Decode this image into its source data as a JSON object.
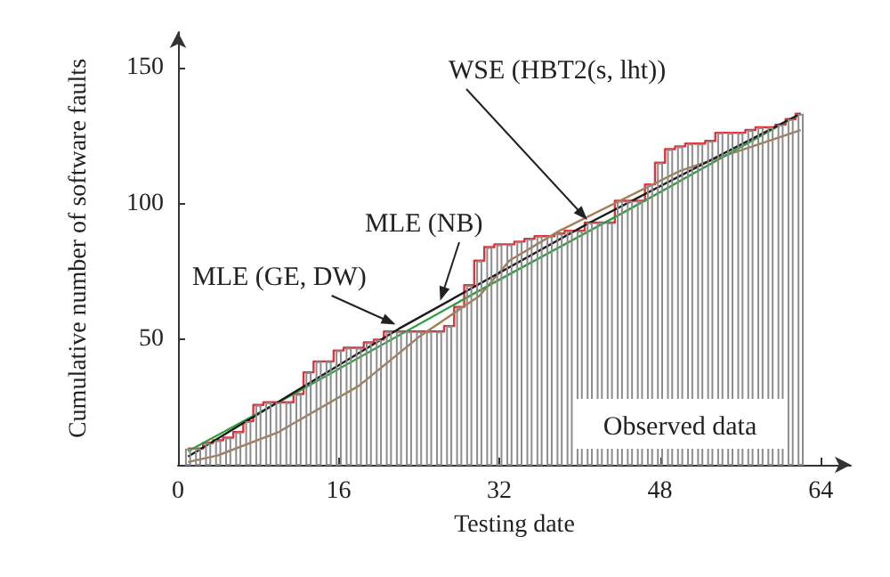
{
  "chart_data": {
    "type": "bar",
    "xlabel": "Testing date",
    "ylabel": "Cumulative number of software faults",
    "x": [
      1,
      2,
      3,
      4,
      5,
      6,
      7,
      8,
      9,
      10,
      11,
      12,
      13,
      14,
      15,
      16,
      17,
      18,
      19,
      20,
      21,
      22,
      23,
      24,
      25,
      26,
      27,
      28,
      29,
      30,
      31,
      32,
      33,
      34,
      35,
      36,
      37,
      38,
      39,
      40,
      41,
      42,
      43,
      44,
      45,
      46,
      47,
      48,
      49,
      50,
      51,
      52,
      53,
      54,
      55,
      56,
      57,
      58,
      59,
      60,
      61,
      62
    ],
    "series": [
      {
        "name": "Observed data",
        "color": "#8c8c8c",
        "values": [
          10,
          10,
          12,
          13,
          14,
          16,
          20,
          26,
          27,
          27,
          27,
          30,
          38,
          42,
          42,
          46,
          47,
          47,
          49,
          50,
          53,
          53,
          53,
          53,
          53,
          53,
          55,
          62,
          70,
          79,
          84,
          85,
          85,
          86,
          87,
          88,
          88,
          89,
          90,
          90,
          93,
          93,
          93,
          101,
          101,
          101,
          107,
          115,
          120,
          121,
          122,
          122,
          123,
          126,
          126,
          126,
          127,
          128,
          128,
          129,
          131,
          133
        ]
      },
      {
        "type": "step",
        "color": "#e0303a",
        "values": [
          10,
          10,
          12,
          13,
          14,
          16,
          20,
          26,
          27,
          27,
          27,
          30,
          38,
          42,
          42,
          46,
          47,
          47,
          49,
          50,
          53,
          53,
          53,
          53,
          53,
          53,
          55,
          62,
          70,
          79,
          84,
          85,
          85,
          86,
          87,
          88,
          88,
          89,
          90,
          90,
          93,
          93,
          93,
          101,
          101,
          101,
          107,
          115,
          120,
          121,
          122,
          122,
          123,
          126,
          126,
          126,
          127,
          128,
          128,
          129,
          131,
          133
        ]
      },
      {
        "type": "line",
        "color": "#a67c52",
        "x": [
          1,
          4,
          10,
          18,
          24,
          30,
          33,
          38,
          50,
          62
        ],
        "values": [
          5,
          7.5,
          16,
          33,
          51,
          66,
          79,
          90,
          112,
          127
        ]
      },
      {
        "type": "line",
        "color": "#2e9e3e",
        "x": [
          1,
          12,
          30,
          45,
          62
        ],
        "values": [
          9,
          31,
          68,
          98,
          133
        ]
      },
      {
        "type": "line",
        "color": "#1a1a1a",
        "x": [
          1,
          22,
          41,
          62
        ],
        "values": [
          7,
          54,
          93,
          133
        ]
      }
    ],
    "xlim": [
      0,
      67
    ],
    "xticks": [
      0,
      16,
      32,
      48,
      64
    ],
    "ylim": [
      4,
      163
    ],
    "yticks": [
      50,
      100,
      150
    ],
    "annotations": [
      {
        "text": "WSE (HBT2(s, lht))",
        "x": 41,
        "y": 93
      },
      {
        "text": "MLE (NB)",
        "x": 26,
        "y": 63
      },
      {
        "text": "MLE (GE, DW)",
        "x": 22,
        "y": 55
      }
    ]
  }
}
